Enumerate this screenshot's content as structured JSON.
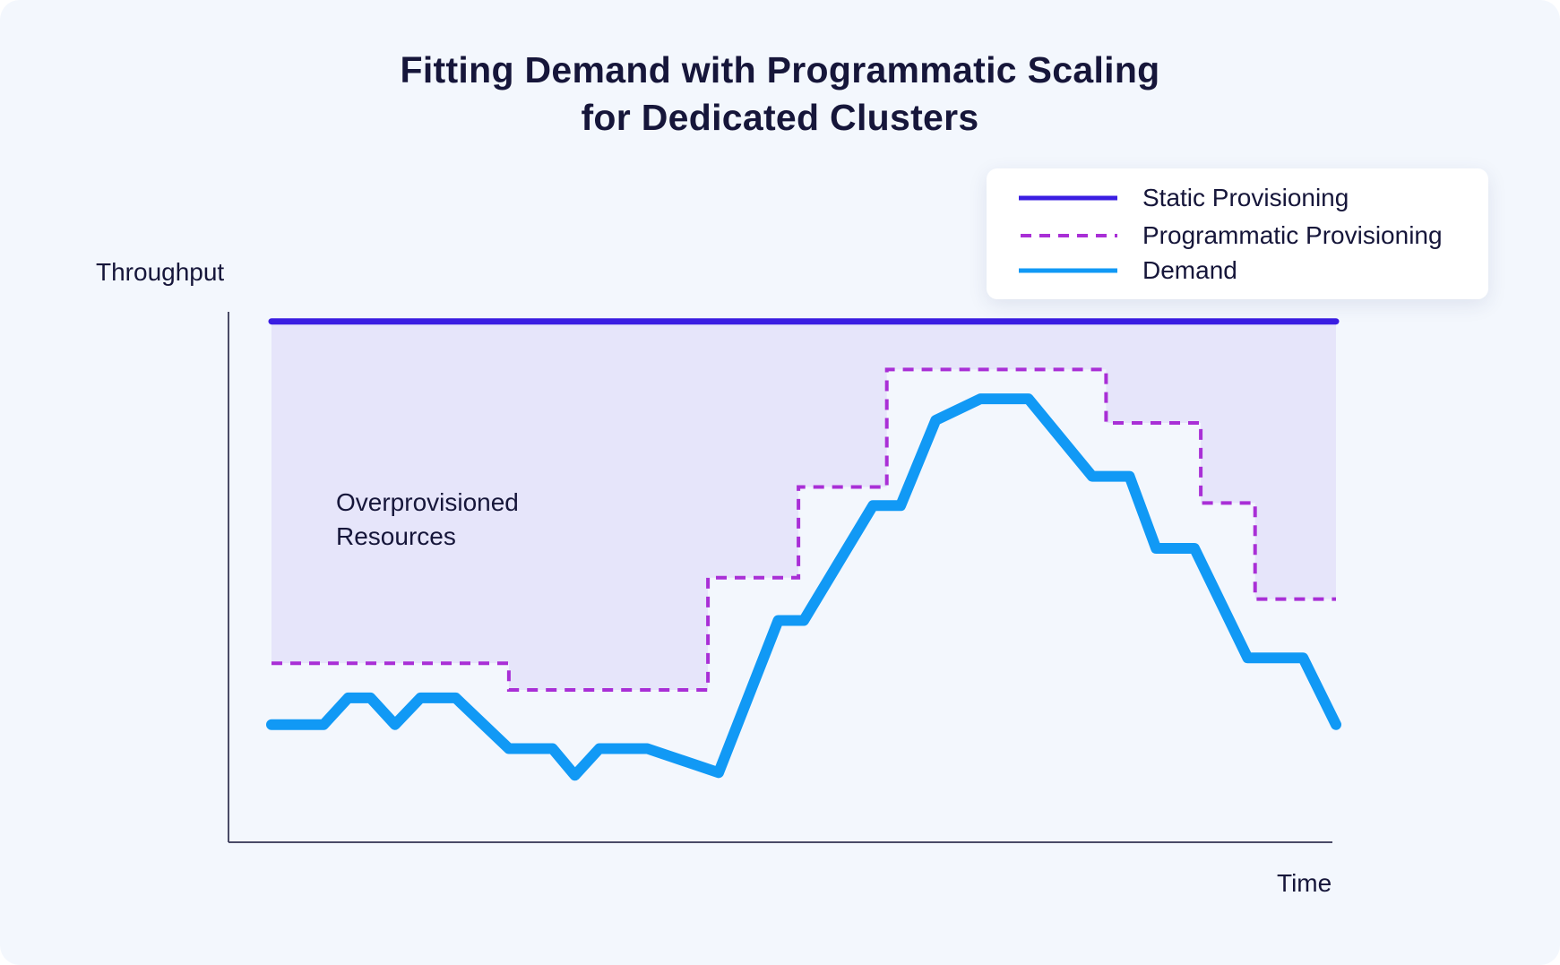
{
  "chart_data": {
    "type": "line",
    "title_line1": "Fitting Demand with Programmatic Scaling",
    "title_line2": "for Dedicated Clusters",
    "xlabel": "Time",
    "ylabel": "Throughput",
    "xlim": [
      0,
      100
    ],
    "ylim": [
      0,
      100
    ],
    "annotation_line1": "Overprovisioned",
    "annotation_line2": "Resources",
    "legend_position": "top-right",
    "series": [
      {
        "name": "Static Provisioning",
        "style": "solid",
        "color": "#3a1de2",
        "points": [
          [
            0,
            93
          ],
          [
            100,
            93
          ]
        ]
      },
      {
        "name": "Programmatic Provisioning",
        "style": "dashed-step",
        "color": "#a92fd6",
        "points": [
          [
            0,
            29
          ],
          [
            22.3,
            29
          ],
          [
            22.3,
            24
          ],
          [
            41,
            24
          ],
          [
            41,
            45
          ],
          [
            49.5,
            45
          ],
          [
            49.5,
            62
          ],
          [
            57.8,
            62
          ],
          [
            57.8,
            84
          ],
          [
            78.4,
            84
          ],
          [
            78.4,
            74
          ],
          [
            87.3,
            74
          ],
          [
            87.3,
            59
          ],
          [
            92.4,
            59
          ],
          [
            92.4,
            41
          ],
          [
            100,
            41
          ]
        ]
      },
      {
        "name": "Demand",
        "style": "solid",
        "color": "#1199f5",
        "points": [
          [
            0,
            17.5
          ],
          [
            4.9,
            17.5
          ],
          [
            7.2,
            22.5
          ],
          [
            9.3,
            22.5
          ],
          [
            11.6,
            17.5
          ],
          [
            14,
            22.5
          ],
          [
            17.3,
            22.5
          ],
          [
            22.3,
            13
          ],
          [
            26.4,
            13
          ],
          [
            28.5,
            8
          ],
          [
            30.8,
            13
          ],
          [
            35.3,
            13
          ],
          [
            42,
            8.5
          ],
          [
            47.6,
            37
          ],
          [
            50,
            37
          ],
          [
            56.5,
            58.5
          ],
          [
            59.1,
            58.5
          ],
          [
            62.4,
            74.5
          ],
          [
            66.6,
            78.5
          ],
          [
            71.1,
            78.5
          ],
          [
            77.1,
            64
          ],
          [
            80.6,
            64
          ],
          [
            83.1,
            50.5
          ],
          [
            86.7,
            50.5
          ],
          [
            91.7,
            30
          ],
          [
            96.9,
            30
          ],
          [
            100,
            17.5
          ]
        ]
      }
    ]
  }
}
